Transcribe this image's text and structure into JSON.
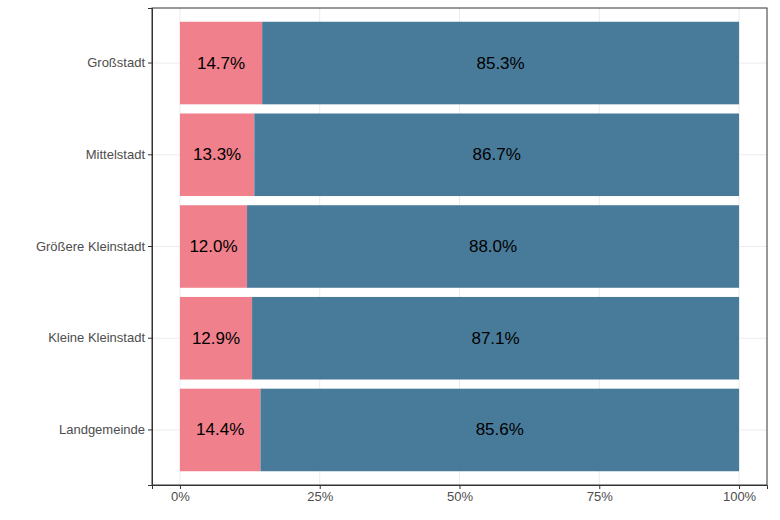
{
  "chart_data": {
    "type": "bar",
    "orientation": "horizontal",
    "stacked": true,
    "data_labels": true,
    "grid": true,
    "categories": [
      "Großstadt",
      "Mittelstadt",
      "Größere Kleinstadt",
      "Kleine Kleinstadt",
      "Landgemeinde"
    ],
    "series": [
      {
        "color": "#F0808C",
        "values": [
          14.7,
          13.3,
          12.0,
          12.9,
          14.4
        ],
        "value_labels": [
          "14.7%",
          "13.3%",
          "12.0%",
          "12.9%",
          "14.4%"
        ]
      },
      {
        "color": "#487B9A",
        "values": [
          85.3,
          86.7,
          88.0,
          87.1,
          85.6
        ],
        "value_labels": [
          "85.3%",
          "86.7%",
          "88.0%",
          "87.1%",
          "85.6%"
        ]
      }
    ],
    "xlim": [
      -5,
      105
    ],
    "xticks": [
      {
        "value": 0,
        "label": "0%"
      },
      {
        "value": 25,
        "label": "25%"
      },
      {
        "value": 50,
        "label": "50%"
      },
      {
        "value": 75,
        "label": "75%"
      },
      {
        "value": 100,
        "label": "100%"
      }
    ]
  }
}
